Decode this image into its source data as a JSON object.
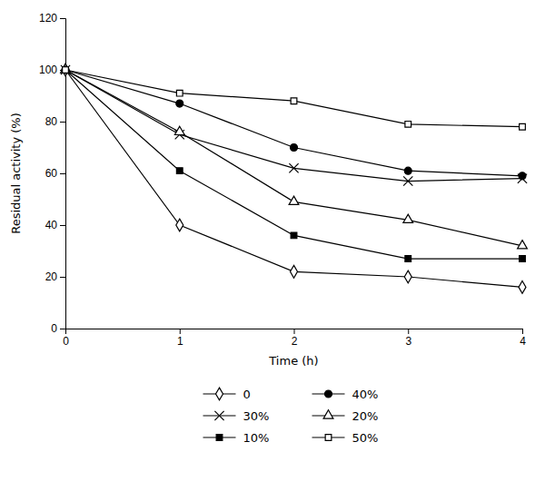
{
  "chart_data": {
    "type": "line",
    "xlabel": "Time (h)",
    "ylabel": "Residual activity (%)",
    "x": [
      0,
      1,
      2,
      3,
      4
    ],
    "series": [
      {
        "name": "0",
        "color": "black",
        "marker": "diamond-open",
        "values": [
          100,
          40,
          22,
          20,
          16
        ]
      },
      {
        "name": "30%",
        "color": "black",
        "marker": "x",
        "values": [
          100,
          75,
          62,
          57,
          58
        ]
      },
      {
        "name": "10%",
        "color": "black",
        "marker": "square-filled",
        "values": [
          100,
          61,
          36,
          27,
          27
        ]
      },
      {
        "name": "40%",
        "color": "black",
        "marker": "circle-filled",
        "values": [
          100,
          87,
          70,
          61,
          59
        ]
      },
      {
        "name": "20%",
        "color": "black",
        "marker": "triangle-open",
        "values": [
          100,
          76,
          49,
          42,
          32
        ]
      },
      {
        "name": "50%",
        "color": "black",
        "marker": "square-open",
        "values": [
          100,
          91,
          88,
          79,
          78
        ]
      }
    ],
    "xlim": [
      0,
      4
    ],
    "ylim": [
      0,
      120
    ],
    "xticks": [
      0,
      1,
      2,
      3,
      4
    ],
    "yticks": [
      0,
      20,
      40,
      60,
      80,
      100,
      120
    ],
    "grid": false,
    "legend": "bottom"
  }
}
